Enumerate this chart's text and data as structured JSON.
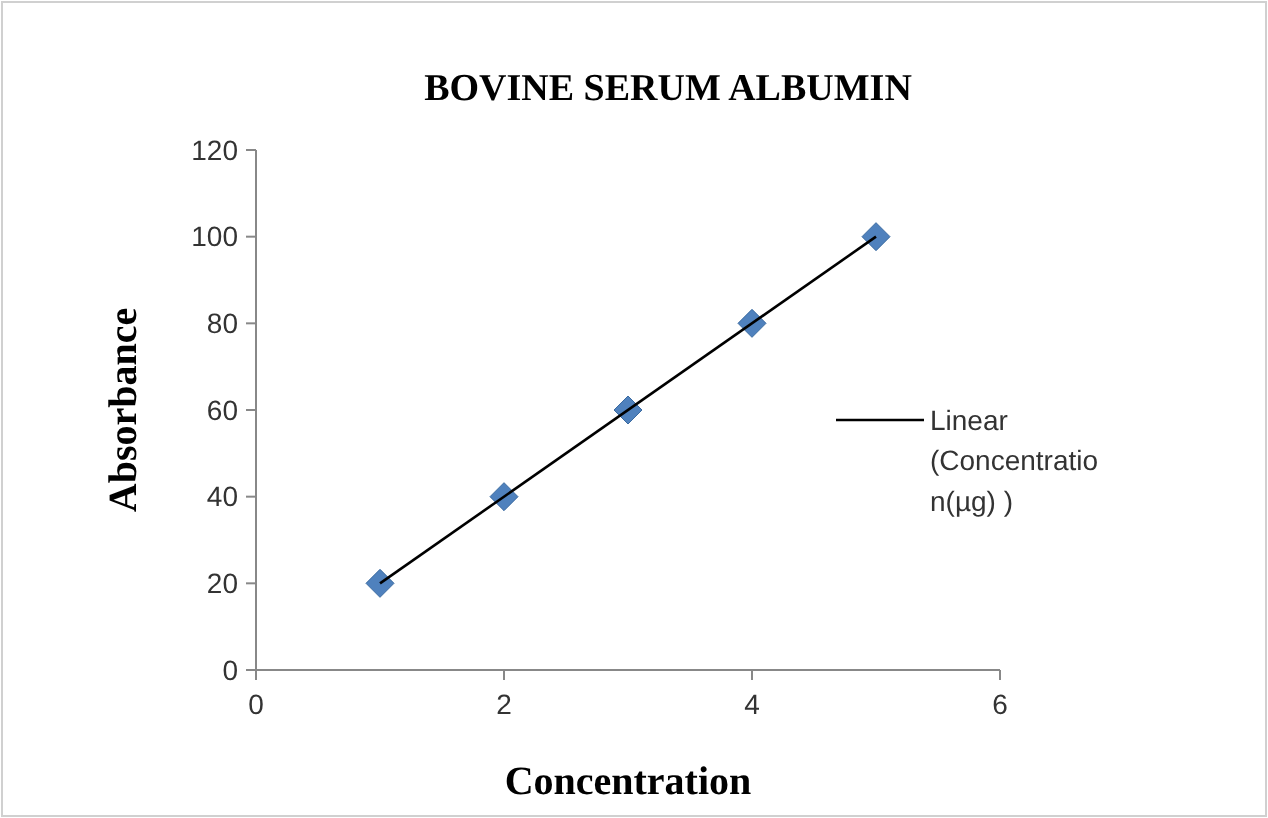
{
  "chart_data": {
    "type": "scatter",
    "title": "BOVINE SERUM ALBUMIN",
    "xlabel": "Concentration",
    "ylabel": "Absorbance",
    "xlim": [
      0,
      6
    ],
    "xticks": [
      0,
      2,
      4,
      6
    ],
    "ylim": [
      0,
      120
    ],
    "yticks": [
      0,
      20,
      40,
      60,
      80,
      100,
      120
    ],
    "grid": false,
    "legend": "right",
    "marker": "diamond",
    "series": [
      {
        "color": "#4f81bd",
        "x": [
          1,
          2,
          3,
          4,
          5
        ],
        "values": [
          20,
          40,
          60,
          80,
          100
        ]
      },
      {
        "type": "line",
        "name": "Linear (Concentration(µg) )",
        "color": "#000000",
        "x": [
          1,
          5
        ],
        "values": [
          20,
          100
        ],
        "line_style": "solid",
        "marker": "none"
      }
    ]
  }
}
